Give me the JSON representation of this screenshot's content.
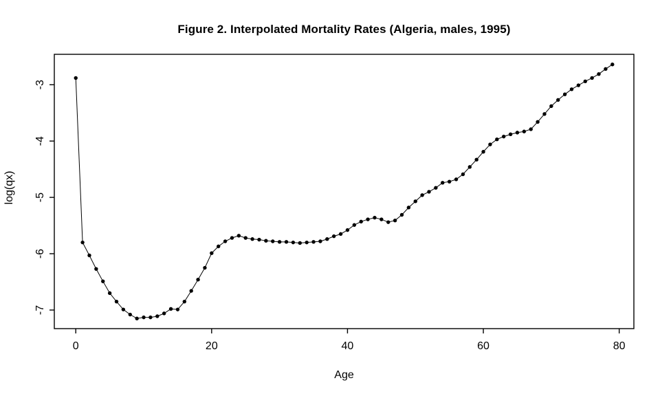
{
  "figure": {
    "kind": "r-base-plot",
    "background_color": "#ffffff",
    "plot_color": "#000000"
  },
  "chart_data": {
    "type": "scatter",
    "title": "Figure 2. Interpolated Mortality Rates (Algeria, males, 1995)",
    "xlabel": "Age",
    "ylabel": "log(qx)",
    "x_ticks": [
      0,
      20,
      40,
      60,
      80
    ],
    "y_ticks": [
      -7,
      -6,
      -5,
      -4,
      -3
    ],
    "xlim": [
      -3.16,
      82.16
    ],
    "ylim": [
      -7.33,
      -2.46
    ],
    "grid": false,
    "legend": "none",
    "marker_style": "filled-black-dot",
    "line_style": "thin-black-connector",
    "series": [
      {
        "name": "log(qx) by single year of age (interpolated)",
        "x": [
          0,
          1,
          2,
          3,
          4,
          5,
          6,
          7,
          8,
          9,
          10,
          11,
          12,
          13,
          14,
          15,
          16,
          17,
          18,
          19,
          20,
          21,
          22,
          23,
          24,
          25,
          26,
          27,
          28,
          29,
          30,
          31,
          32,
          33,
          34,
          35,
          36,
          37,
          38,
          39,
          40,
          41,
          42,
          43,
          44,
          45,
          46,
          47,
          48,
          49,
          50,
          51,
          52,
          53,
          54,
          55,
          56,
          57,
          58,
          59,
          60,
          61,
          62,
          63,
          64,
          65,
          66,
          67,
          68,
          69,
          70,
          71,
          72,
          73,
          74,
          75,
          76,
          77,
          78,
          79
        ],
        "y": [
          -2.88,
          -5.8,
          -6.03,
          -6.27,
          -6.49,
          -6.7,
          -6.85,
          -6.99,
          -7.08,
          -7.15,
          -7.13,
          -7.13,
          -7.11,
          -7.06,
          -6.98,
          -6.99,
          -6.85,
          -6.66,
          -6.46,
          -6.25,
          -5.99,
          -5.87,
          -5.78,
          -5.72,
          -5.68,
          -5.72,
          -5.74,
          -5.75,
          -5.77,
          -5.78,
          -5.79,
          -5.79,
          -5.8,
          -5.81,
          -5.8,
          -5.79,
          -5.78,
          -5.74,
          -5.69,
          -5.65,
          -5.58,
          -5.49,
          -5.43,
          -5.39,
          -5.36,
          -5.39,
          -5.44,
          -5.41,
          -5.31,
          -5.18,
          -5.07,
          -4.96,
          -4.9,
          -4.83,
          -4.74,
          -4.72,
          -4.68,
          -4.59,
          -4.46,
          -4.33,
          -4.19,
          -4.06,
          -3.97,
          -3.92,
          -3.88,
          -3.85,
          -3.83,
          -3.79,
          -3.66,
          -3.52,
          -3.38,
          -3.27,
          -3.17,
          -3.08,
          -3.01,
          -2.94,
          -2.88,
          -2.81,
          -2.72,
          -2.64
        ]
      }
    ]
  }
}
